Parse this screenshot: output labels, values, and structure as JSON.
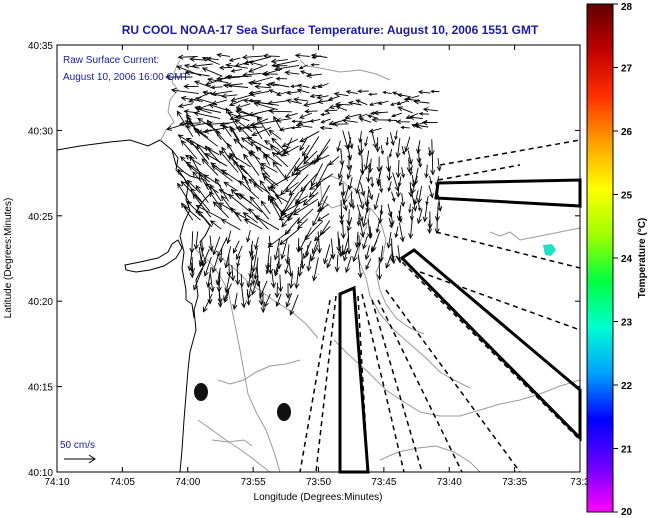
{
  "title": "RU COOL  NOAA-17  Sea Surface Temperature:  August 10, 2006 1551 GMT",
  "overlay": {
    "line1": "Raw Surface Current:",
    "line2": "August 10, 2006 16:00 GMT",
    "scale_label": "50 cm/s"
  },
  "axes": {
    "x_label": "Longitude (Degrees:Minutes)",
    "y_label": "Latitude (Degrees:Minutes)",
    "x_ticks": [
      "74:10",
      "74:05",
      "74:00",
      "73:55",
      "73:50",
      "73:45",
      "73:40",
      "73:35",
      "73:3"
    ],
    "y_ticks": [
      "40:35",
      "40:30",
      "40:25",
      "40:20",
      "40:15",
      "40:10"
    ]
  },
  "colorbar": {
    "label": "Temperature (°C)",
    "min": 20,
    "max": 28,
    "ticks": [
      "28",
      "27",
      "26",
      "25",
      "24",
      "23",
      "22",
      "21",
      "20"
    ],
    "stops": [
      "#ff00ff",
      "#6a00ff",
      "#0000ff",
      "#00a0ff",
      "#00ffd0",
      "#00ff40",
      "#a0ff00",
      "#ffff00",
      "#ffa000",
      "#ff3000",
      "#c00000",
      "#600000"
    ]
  },
  "colors": {
    "title": "#1a1aa0",
    "sst_patch": "#20e0c8"
  }
}
